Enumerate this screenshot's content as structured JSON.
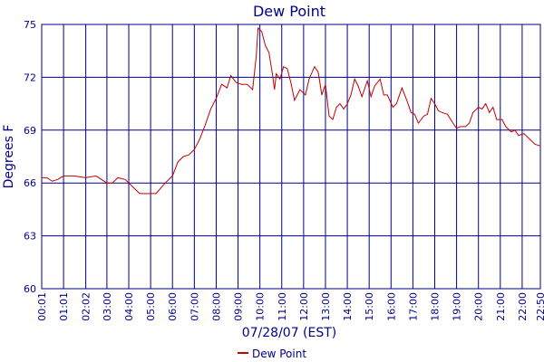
{
  "chart_data": {
    "type": "line",
    "title": "Dew Point",
    "xlabel": "07/28/07 (EST)",
    "ylabel": "Degrees F",
    "ylim": [
      60,
      75
    ],
    "xlim": [
      "00:01",
      "22:50"
    ],
    "yticks": [
      "60",
      "63",
      "66",
      "69",
      "72",
      "75"
    ],
    "xticks": [
      "00:01",
      "01:01",
      "02:02",
      "03:00",
      "04:00",
      "05:00",
      "06:00",
      "07:00",
      "08:00",
      "09:00",
      "10:00",
      "11:00",
      "12:00",
      "13:00",
      "14:00",
      "15:00",
      "16:00",
      "17:00",
      "18:00",
      "19:00",
      "20:00",
      "21:00",
      "22:00",
      "22:50"
    ],
    "grid": true,
    "legend": "bottom-center",
    "series": [
      {
        "name": "Dew Point",
        "color": "#c00000",
        "points": [
          [
            "00:01",
            66.3
          ],
          [
            "00:15",
            66.3
          ],
          [
            "00:30",
            66.1
          ],
          [
            "00:45",
            66.2
          ],
          [
            "01:01",
            66.4
          ],
          [
            "01:30",
            66.4
          ],
          [
            "02:02",
            66.3
          ],
          [
            "02:30",
            66.4
          ],
          [
            "03:00",
            66.0
          ],
          [
            "03:15",
            66.0
          ],
          [
            "03:30",
            66.3
          ],
          [
            "03:50",
            66.2
          ],
          [
            "04:10",
            65.8
          ],
          [
            "04:30",
            65.4
          ],
          [
            "05:00",
            65.4
          ],
          [
            "05:15",
            65.4
          ],
          [
            "05:40",
            66.0
          ],
          [
            "06:00",
            66.4
          ],
          [
            "06:15",
            67.2
          ],
          [
            "06:30",
            67.5
          ],
          [
            "06:45",
            67.6
          ],
          [
            "07:00",
            67.9
          ],
          [
            "07:15",
            68.5
          ],
          [
            "07:30",
            69.3
          ],
          [
            "07:45",
            70.2
          ],
          [
            "08:00",
            70.8
          ],
          [
            "08:15",
            71.6
          ],
          [
            "08:30",
            71.4
          ],
          [
            "08:40",
            72.1
          ],
          [
            "08:55",
            71.7
          ],
          [
            "09:10",
            71.6
          ],
          [
            "09:25",
            71.6
          ],
          [
            "09:40",
            71.3
          ],
          [
            "09:50",
            73.2
          ],
          [
            "09:55",
            74.8
          ],
          [
            "10:05",
            74.6
          ],
          [
            "10:15",
            73.8
          ],
          [
            "10:25",
            73.4
          ],
          [
            "10:35",
            72.1
          ],
          [
            "10:40",
            71.3
          ],
          [
            "10:45",
            72.2
          ],
          [
            "10:55",
            71.9
          ],
          [
            "11:05",
            72.6
          ],
          [
            "11:15",
            72.5
          ],
          [
            "11:25",
            71.7
          ],
          [
            "11:35",
            70.7
          ],
          [
            "11:50",
            71.3
          ],
          [
            "12:05",
            71.0
          ],
          [
            "12:15",
            71.9
          ],
          [
            "12:30",
            72.6
          ],
          [
            "12:40",
            72.3
          ],
          [
            "12:50",
            71.0
          ],
          [
            "13:00",
            71.6
          ],
          [
            "13:10",
            69.8
          ],
          [
            "13:20",
            69.6
          ],
          [
            "13:30",
            70.3
          ],
          [
            "13:40",
            70.5
          ],
          [
            "13:50",
            70.2
          ],
          [
            "14:00",
            70.5
          ],
          [
            "14:10",
            71.0
          ],
          [
            "14:20",
            71.9
          ],
          [
            "14:30",
            71.5
          ],
          [
            "14:40",
            70.9
          ],
          [
            "14:50",
            71.5
          ],
          [
            "14:55",
            71.8
          ],
          [
            "15:05",
            70.9
          ],
          [
            "15:15",
            71.5
          ],
          [
            "15:30",
            71.9
          ],
          [
            "15:40",
            71.0
          ],
          [
            "15:50",
            71.0
          ],
          [
            "16:05",
            70.3
          ],
          [
            "16:15",
            70.5
          ],
          [
            "16:30",
            71.4
          ],
          [
            "16:45",
            70.6
          ],
          [
            "16:55",
            70.0
          ],
          [
            "17:05",
            69.9
          ],
          [
            "17:15",
            69.4
          ],
          [
            "17:30",
            69.8
          ],
          [
            "17:40",
            69.9
          ],
          [
            "17:50",
            70.8
          ],
          [
            "18:00",
            70.5
          ],
          [
            "18:10",
            70.1
          ],
          [
            "18:20",
            70.0
          ],
          [
            "18:35",
            69.9
          ],
          [
            "18:50",
            69.4
          ],
          [
            "19:00",
            69.1
          ],
          [
            "19:10",
            69.2
          ],
          [
            "19:25",
            69.2
          ],
          [
            "19:35",
            69.4
          ],
          [
            "19:45",
            70.0
          ],
          [
            "20:00",
            70.3
          ],
          [
            "20:10",
            70.2
          ],
          [
            "20:20",
            70.5
          ],
          [
            "20:30",
            70.0
          ],
          [
            "20:40",
            70.3
          ],
          [
            "20:50",
            69.6
          ],
          [
            "21:05",
            69.6
          ],
          [
            "21:15",
            69.2
          ],
          [
            "21:30",
            68.9
          ],
          [
            "21:40",
            69.0
          ],
          [
            "21:50",
            68.7
          ],
          [
            "22:05",
            68.8
          ],
          [
            "22:20",
            68.5
          ],
          [
            "22:35",
            68.2
          ],
          [
            "22:50",
            68.1
          ]
        ]
      }
    ]
  }
}
